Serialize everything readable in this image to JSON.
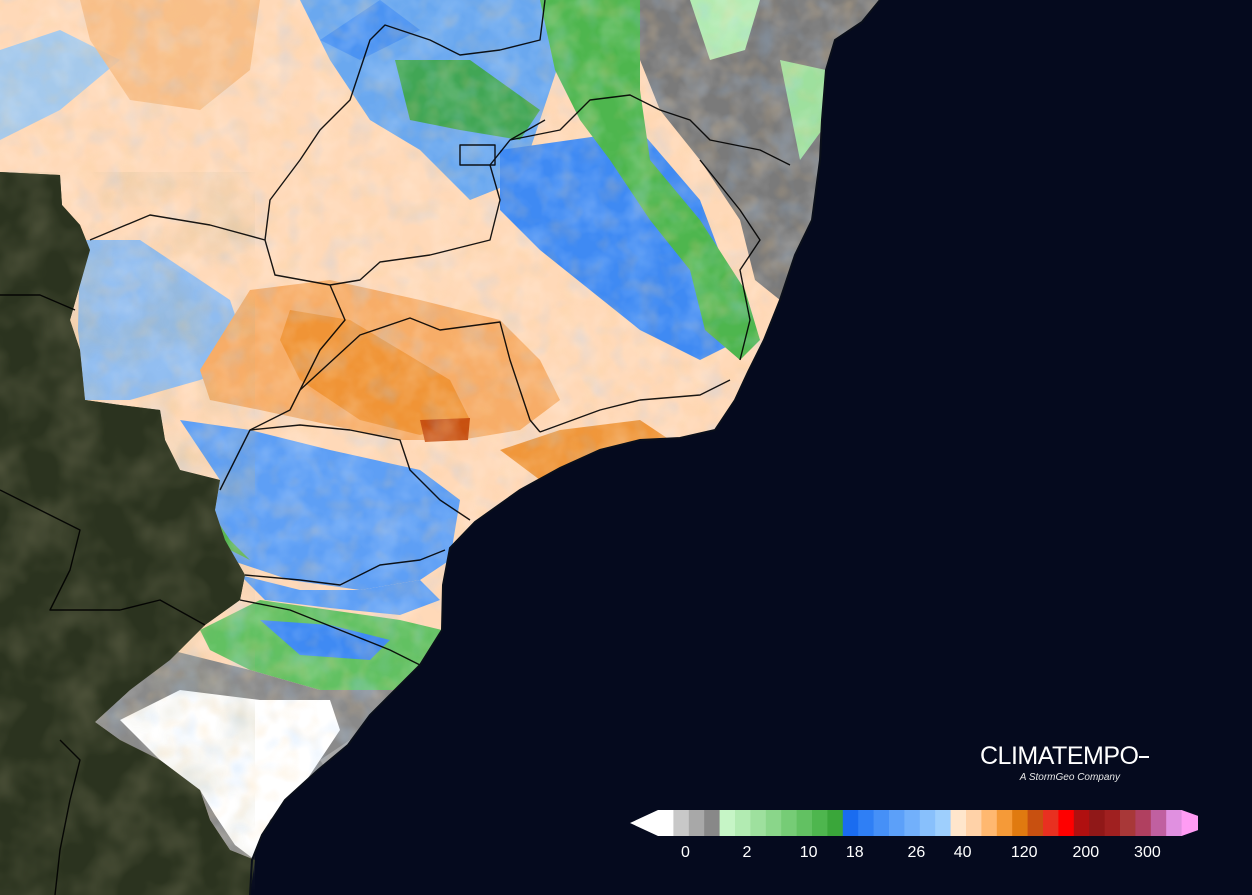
{
  "brand": {
    "name": "CLIMATEMPO",
    "tagline": "A StormGeo Company"
  },
  "legend": {
    "colors": [
      "#ffffff",
      "#c8c8c8",
      "#a8a8a8",
      "#888888",
      "#c6f5c6",
      "#b2ebb2",
      "#9ee09e",
      "#8ad68a",
      "#76cc76",
      "#62c162",
      "#4eb64e",
      "#3aa63a",
      "#1a6cf0",
      "#2f7ff5",
      "#4690f7",
      "#5ca0f9",
      "#72b0fb",
      "#88c0fc",
      "#9ecffd",
      "#ffe6cc",
      "#ffd2a8",
      "#ffb870",
      "#f59a38",
      "#e07a10",
      "#c85010",
      "#e83020",
      "#ff0000",
      "#b01010",
      "#901818",
      "#a02020",
      "#a83838",
      "#b04060",
      "#c060a0",
      "#e090e0"
    ],
    "end_color": "#ff9cf4",
    "start_color": "#ffffff",
    "ticks": [
      {
        "label": "0",
        "index": 1
      },
      {
        "label": "2",
        "index": 5
      },
      {
        "label": "10",
        "index": 9
      },
      {
        "label": "18",
        "index": 12
      },
      {
        "label": "26",
        "index": 16
      },
      {
        "label": "40",
        "index": 19
      },
      {
        "label": "120",
        "index": 23
      },
      {
        "label": "200",
        "index": 27
      },
      {
        "label": "300",
        "index": 31
      }
    ]
  },
  "colors": {
    "ocean": "#050a1e",
    "land_dark": "#2e3520",
    "border": "#000000"
  }
}
